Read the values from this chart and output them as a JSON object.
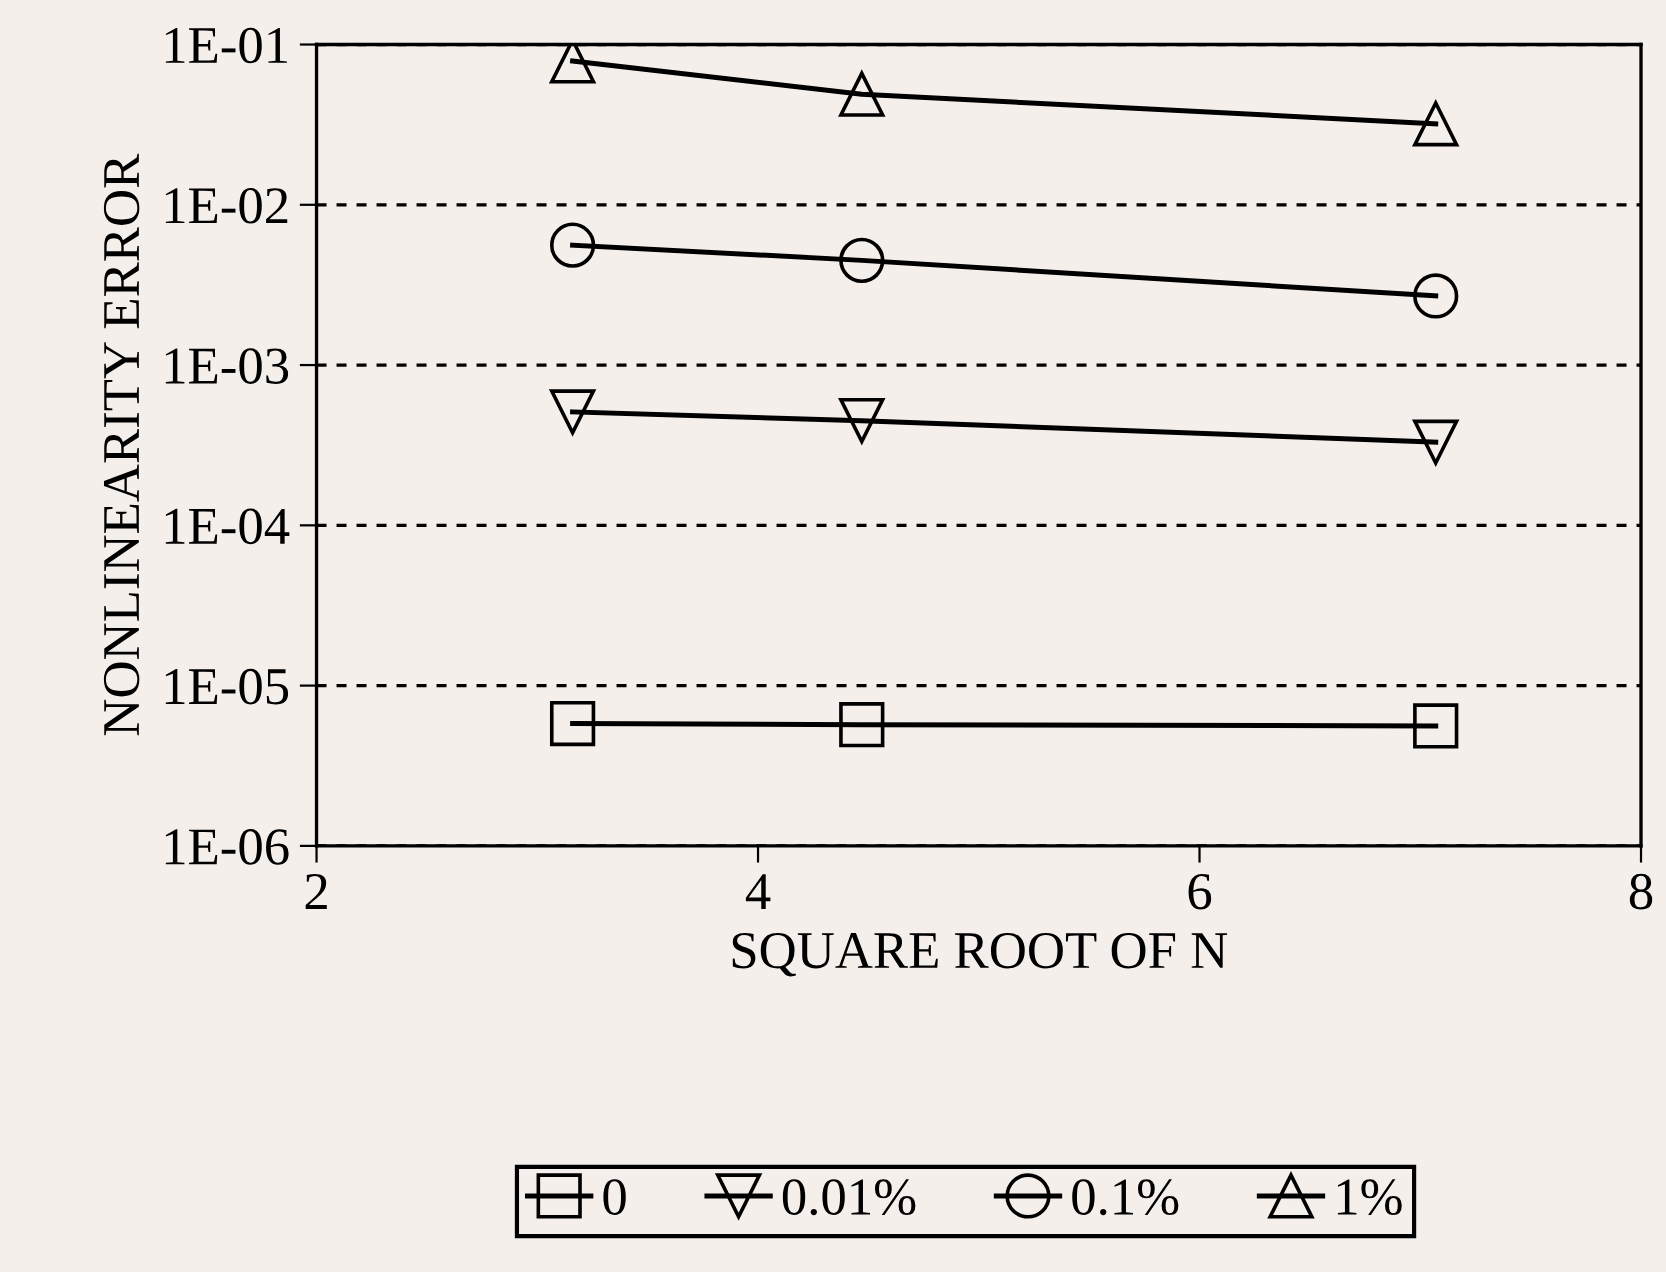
{
  "chart_data": {
    "type": "line",
    "xlabel": "SQUARE ROOT OF N",
    "ylabel": "NONLINEARITY ERROR",
    "log": "y",
    "xlim": [
      2,
      8
    ],
    "xticks": [
      2,
      4,
      6,
      8
    ],
    "ylim": [
      1e-06,
      0.1
    ],
    "yticks": [
      {
        "value": 1e-06,
        "label": "1E-06"
      },
      {
        "value": 1e-05,
        "label": "1E-05"
      },
      {
        "value": 0.0001,
        "label": "1E-04"
      },
      {
        "value": 0.001,
        "label": "1E-03"
      },
      {
        "value": 0.01,
        "label": "1E-02"
      },
      {
        "value": 0.1,
        "label": "1E-01"
      }
    ],
    "grid": "y",
    "legend": "bottom",
    "line_style": "solid",
    "x": [
      3.16,
      4.47,
      7.07
    ],
    "series": [
      {
        "name": "0",
        "color": "#000000",
        "marker": "square",
        "values": [
          5.8e-06,
          5.7e-06,
          5.6e-06
        ]
      },
      {
        "name": "0.01%",
        "color": "#000000",
        "marker": "triangle-down",
        "values": [
          0.00051,
          0.00045,
          0.00033
        ]
      },
      {
        "name": "0.1%",
        "color": "#000000",
        "marker": "circle",
        "values": [
          0.0056,
          0.0045,
          0.0027
        ]
      },
      {
        "name": "1%",
        "color": "#000000",
        "marker": "triangle",
        "values": [
          0.079,
          0.049,
          0.032
        ]
      }
    ]
  }
}
